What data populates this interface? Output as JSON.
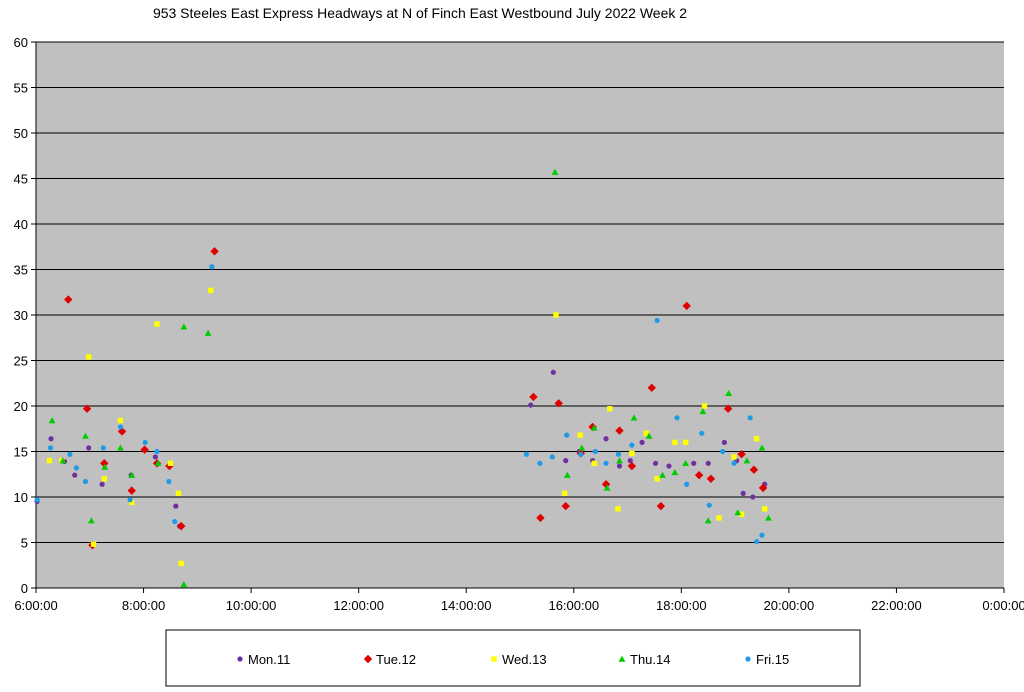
{
  "chart_data": {
    "type": "scatter",
    "title": "953 Steeles East Express Headways at N of Finch East Westbound July 2022  Week 2",
    "xlabel": "",
    "ylabel": "",
    "x_unit": "time of day (hours)",
    "xlim": [
      6,
      24
    ],
    "ylim": [
      0,
      60
    ],
    "x_ticks": [
      6,
      8,
      10,
      12,
      14,
      16,
      18,
      20,
      22,
      24
    ],
    "x_tick_labels": [
      "6:00:00",
      "8:00:00",
      "10:00:00",
      "12:00:00",
      "14:00:00",
      "16:00:00",
      "18:00:00",
      "20:00:00",
      "22:00:00",
      "0:00:00"
    ],
    "y_ticks": [
      0,
      5,
      10,
      15,
      20,
      25,
      30,
      35,
      40,
      45,
      50,
      55,
      60
    ],
    "y_tick_labels": [
      "0",
      "5",
      "10",
      "15",
      "20",
      "25",
      "30",
      "35",
      "40",
      "45",
      "50",
      "55",
      "60"
    ],
    "grid": "horizontal",
    "background": "#c0c0c0",
    "legend_position": "bottom",
    "series": [
      {
        "name": "Mon.11",
        "color": "#7030a0",
        "marker": "circle",
        "points": [
          [
            6.02,
            9.5
          ],
          [
            6.28,
            16.4
          ],
          [
            6.53,
            13.9
          ],
          [
            6.72,
            12.4
          ],
          [
            6.98,
            15.4
          ],
          [
            7.23,
            11.4
          ],
          [
            7.6,
            17.2
          ],
          [
            7.77,
            12.4
          ],
          [
            8.22,
            14.4
          ],
          [
            8.47,
            13.4
          ],
          [
            8.6,
            9.0
          ],
          [
            8.67,
            6.8
          ],
          [
            15.2,
            20.1
          ],
          [
            15.62,
            23.7
          ],
          [
            15.85,
            14.0
          ],
          [
            16.1,
            15.0
          ],
          [
            16.35,
            14.0
          ],
          [
            16.6,
            16.4
          ],
          [
            16.85,
            13.4
          ],
          [
            17.05,
            14.0
          ],
          [
            17.27,
            16.0
          ],
          [
            17.52,
            13.7
          ],
          [
            17.77,
            13.4
          ],
          [
            18.23,
            13.7
          ],
          [
            18.5,
            13.7
          ],
          [
            18.8,
            16.0
          ],
          [
            19.03,
            14.0
          ],
          [
            19.15,
            10.4
          ],
          [
            19.33,
            10.0
          ],
          [
            19.55,
            11.4
          ]
        ]
      },
      {
        "name": "Tue.12",
        "color": "#e00000",
        "marker": "diamond",
        "points": [
          [
            6.6,
            31.7
          ],
          [
            6.95,
            19.7
          ],
          [
            7.05,
            4.7
          ],
          [
            7.27,
            13.7
          ],
          [
            7.6,
            17.2
          ],
          [
            7.78,
            10.7
          ],
          [
            8.02,
            15.2
          ],
          [
            8.25,
            13.7
          ],
          [
            8.48,
            13.4
          ],
          [
            8.7,
            6.8
          ],
          [
            9.32,
            37.0
          ],
          [
            15.25,
            21.0
          ],
          [
            15.38,
            7.7
          ],
          [
            15.72,
            20.3
          ],
          [
            15.85,
            9.0
          ],
          [
            16.13,
            14.8
          ],
          [
            16.35,
            17.7
          ],
          [
            16.6,
            11.4
          ],
          [
            16.85,
            17.3
          ],
          [
            17.08,
            13.4
          ],
          [
            17.45,
            22.0
          ],
          [
            17.62,
            9.0
          ],
          [
            18.1,
            31.0
          ],
          [
            18.33,
            12.4
          ],
          [
            18.55,
            12.0
          ],
          [
            18.87,
            19.7
          ],
          [
            19.12,
            14.7
          ],
          [
            19.35,
            13.0
          ],
          [
            19.52,
            11.0
          ]
        ]
      },
      {
        "name": "Wed.13",
        "color": "#ffff00",
        "marker": "square",
        "points": [
          [
            6.25,
            14.0
          ],
          [
            6.48,
            14.0
          ],
          [
            6.98,
            25.4
          ],
          [
            7.07,
            4.8
          ],
          [
            7.27,
            12.0
          ],
          [
            7.57,
            18.4
          ],
          [
            7.78,
            9.4
          ],
          [
            8.25,
            29.0
          ],
          [
            8.5,
            13.7
          ],
          [
            8.65,
            10.4
          ],
          [
            8.7,
            2.7
          ],
          [
            9.25,
            32.7
          ],
          [
            15.67,
            30.0
          ],
          [
            15.83,
            10.4
          ],
          [
            16.12,
            16.8
          ],
          [
            16.38,
            13.7
          ],
          [
            16.67,
            19.7
          ],
          [
            16.82,
            8.7
          ],
          [
            17.08,
            14.8
          ],
          [
            17.35,
            17.0
          ],
          [
            17.55,
            12.0
          ],
          [
            17.88,
            16.0
          ],
          [
            18.08,
            16.0
          ],
          [
            18.43,
            20.0
          ],
          [
            18.7,
            7.7
          ],
          [
            18.98,
            14.4
          ],
          [
            19.12,
            8.1
          ],
          [
            19.4,
            16.4
          ],
          [
            19.55,
            8.7
          ]
        ]
      },
      {
        "name": "Thu.14",
        "color": "#00cc00",
        "marker": "triangle",
        "points": [
          [
            6.3,
            18.4
          ],
          [
            6.5,
            14.0
          ],
          [
            6.92,
            16.7
          ],
          [
            7.03,
            7.4
          ],
          [
            7.28,
            13.3
          ],
          [
            7.57,
            15.4
          ],
          [
            7.78,
            12.4
          ],
          [
            8.27,
            13.7
          ],
          [
            8.75,
            28.7
          ],
          [
            8.75,
            0.4
          ],
          [
            9.2,
            28.0
          ],
          [
            15.65,
            45.7
          ],
          [
            15.88,
            12.4
          ],
          [
            16.15,
            15.4
          ],
          [
            16.38,
            17.6
          ],
          [
            16.62,
            11.0
          ],
          [
            16.85,
            14.0
          ],
          [
            17.12,
            18.7
          ],
          [
            17.4,
            16.7
          ],
          [
            17.65,
            12.4
          ],
          [
            17.88,
            12.7
          ],
          [
            18.08,
            13.7
          ],
          [
            18.4,
            19.4
          ],
          [
            18.5,
            7.4
          ],
          [
            18.88,
            21.4
          ],
          [
            19.05,
            8.3
          ],
          [
            19.22,
            14.0
          ],
          [
            19.5,
            15.4
          ],
          [
            19.62,
            7.7
          ]
        ]
      },
      {
        "name": "Fri.15",
        "color": "#1e9be6",
        "marker": "circle",
        "points": [
          [
            6.02,
            9.7
          ],
          [
            6.27,
            15.4
          ],
          [
            6.63,
            14.7
          ],
          [
            6.75,
            13.2
          ],
          [
            6.92,
            11.7
          ],
          [
            7.25,
            15.4
          ],
          [
            7.57,
            17.7
          ],
          [
            7.75,
            9.7
          ],
          [
            8.03,
            16.0
          ],
          [
            8.25,
            15.0
          ],
          [
            8.47,
            11.7
          ],
          [
            8.58,
            7.3
          ],
          [
            9.27,
            35.3
          ],
          [
            15.12,
            14.7
          ],
          [
            15.37,
            13.7
          ],
          [
            15.6,
            14.4
          ],
          [
            15.87,
            16.8
          ],
          [
            16.13,
            14.7
          ],
          [
            16.4,
            15.0
          ],
          [
            16.6,
            13.7
          ],
          [
            16.83,
            14.7
          ],
          [
            17.08,
            15.7
          ],
          [
            17.55,
            29.4
          ],
          [
            17.92,
            18.7
          ],
          [
            18.1,
            11.4
          ],
          [
            18.38,
            17.0
          ],
          [
            18.52,
            9.1
          ],
          [
            18.77,
            15.0
          ],
          [
            18.98,
            13.7
          ],
          [
            19.28,
            18.7
          ],
          [
            19.4,
            5.1
          ],
          [
            19.5,
            5.8
          ]
        ]
      }
    ]
  }
}
